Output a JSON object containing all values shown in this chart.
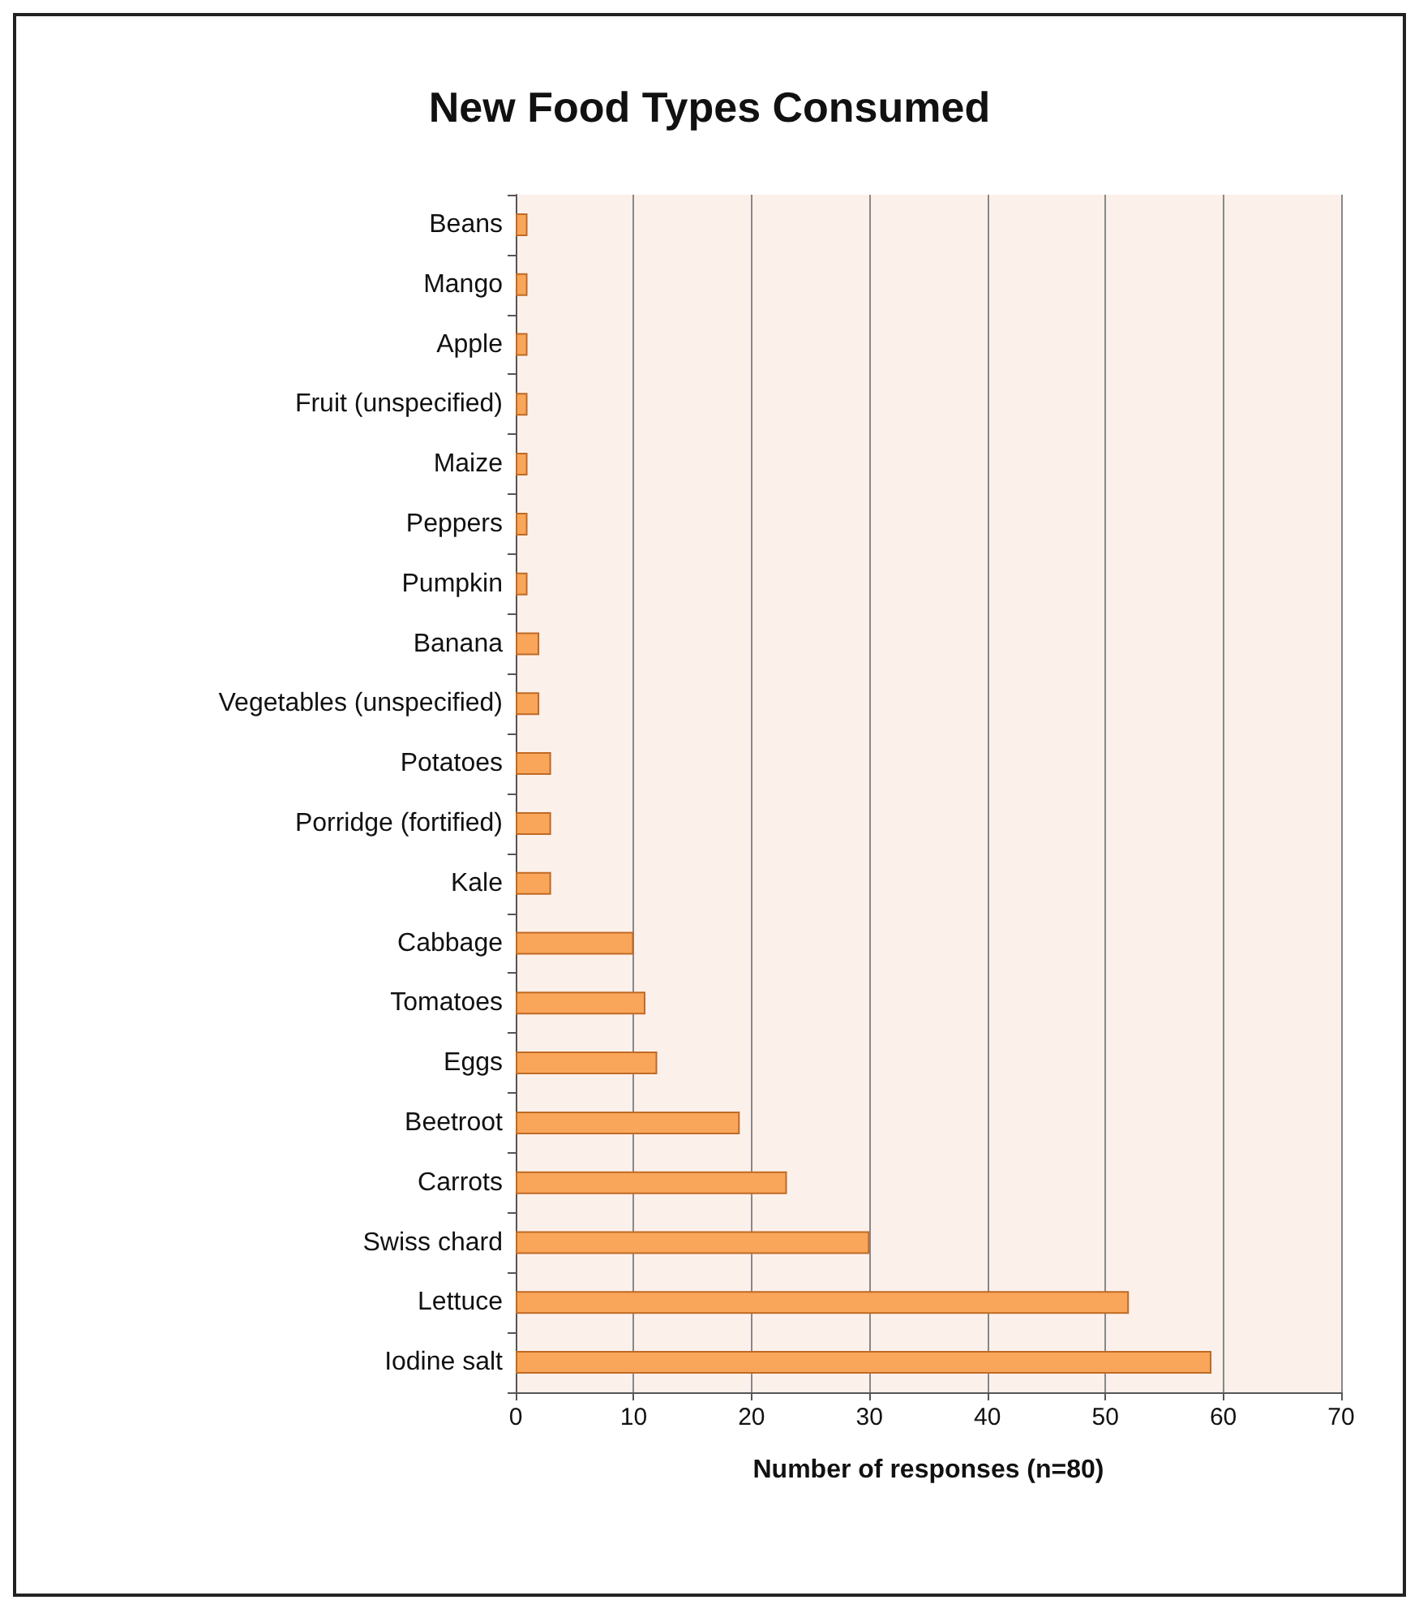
{
  "chart_data": {
    "type": "bar",
    "orientation": "horizontal",
    "title": "New Food Types Consumed",
    "xlabel": "Number of responses (n=80)",
    "categories": [
      "Beans",
      "Mango",
      "Apple",
      "Fruit (unspecified)",
      "Maize",
      "Peppers",
      "Pumpkin",
      "Banana",
      "Vegetables (unspecified)",
      "Potatoes",
      "Porridge (fortified)",
      "Kale",
      "Cabbage",
      "Tomatoes",
      "Eggs",
      "Beetroot",
      "Carrots",
      "Swiss chard",
      "Lettuce",
      "Iodine salt"
    ],
    "values": [
      1,
      1,
      1,
      1,
      1,
      1,
      1,
      2,
      2,
      3,
      3,
      3,
      10,
      11,
      12,
      19,
      23,
      30,
      52,
      59
    ],
    "color": "#f9a65a",
    "xlim": [
      0,
      70
    ],
    "xticks": [
      0,
      10,
      20,
      30,
      40,
      50,
      60,
      70
    ],
    "grid": "x"
  }
}
